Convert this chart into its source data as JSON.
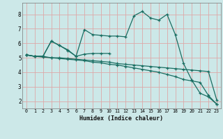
{
  "xlabel": "Humidex (Indice chaleur)",
  "bg_color": "#cce8e8",
  "grid_color": "#dda8a8",
  "line_color": "#1a6e62",
  "xlim": [
    -0.5,
    23.5
  ],
  "ylim": [
    1.5,
    8.8
  ],
  "xticks": [
    0,
    1,
    2,
    3,
    4,
    5,
    6,
    7,
    8,
    9,
    10,
    11,
    12,
    13,
    14,
    15,
    16,
    17,
    18,
    19,
    20,
    21,
    22,
    23
  ],
  "yticks": [
    2,
    3,
    4,
    5,
    6,
    7,
    8
  ],
  "line1_x": [
    0,
    1,
    2,
    3,
    4,
    5,
    6,
    7,
    8,
    9,
    10,
    11,
    12,
    13,
    14,
    15,
    16,
    17,
    18,
    19,
    20,
    21,
    22,
    23
  ],
  "line1_y": [
    5.2,
    5.1,
    5.1,
    5.0,
    5.0,
    4.95,
    4.9,
    4.85,
    4.8,
    4.75,
    4.7,
    4.6,
    4.55,
    4.5,
    4.45,
    4.4,
    4.35,
    4.3,
    4.25,
    4.2,
    4.15,
    4.1,
    4.05,
    2.1
  ],
  "line2_x": [
    0,
    1,
    2,
    3,
    4,
    5,
    6,
    7,
    8,
    9,
    10,
    11,
    12,
    13,
    14,
    15,
    16,
    17,
    18,
    19,
    20,
    21,
    22,
    23
  ],
  "line2_y": [
    5.2,
    5.1,
    5.05,
    5.0,
    4.95,
    4.9,
    4.85,
    4.8,
    4.7,
    4.65,
    4.55,
    4.5,
    4.4,
    4.3,
    4.2,
    4.1,
    4.0,
    3.85,
    3.7,
    3.5,
    3.4,
    3.3,
    2.4,
    1.8
  ],
  "line3_x": [
    0,
    1,
    2,
    3,
    4,
    5,
    6,
    7,
    8,
    9,
    10,
    11,
    12,
    13,
    14,
    15,
    16,
    17,
    18,
    19,
    20,
    21,
    22,
    23
  ],
  "line3_y": [
    5.2,
    5.1,
    5.1,
    6.15,
    5.85,
    5.55,
    5.1,
    6.95,
    6.6,
    6.55,
    6.5,
    6.5,
    6.45,
    7.9,
    8.2,
    7.75,
    7.6,
    8.0,
    6.6,
    4.6,
    3.45,
    2.55,
    2.3,
    1.8
  ],
  "line4_x": [
    0,
    1,
    2,
    3,
    4,
    5,
    6,
    7,
    8,
    9,
    10
  ],
  "line4_y": [
    5.2,
    5.1,
    5.1,
    6.15,
    5.85,
    5.5,
    5.1,
    5.25,
    5.3,
    5.3,
    5.3
  ]
}
